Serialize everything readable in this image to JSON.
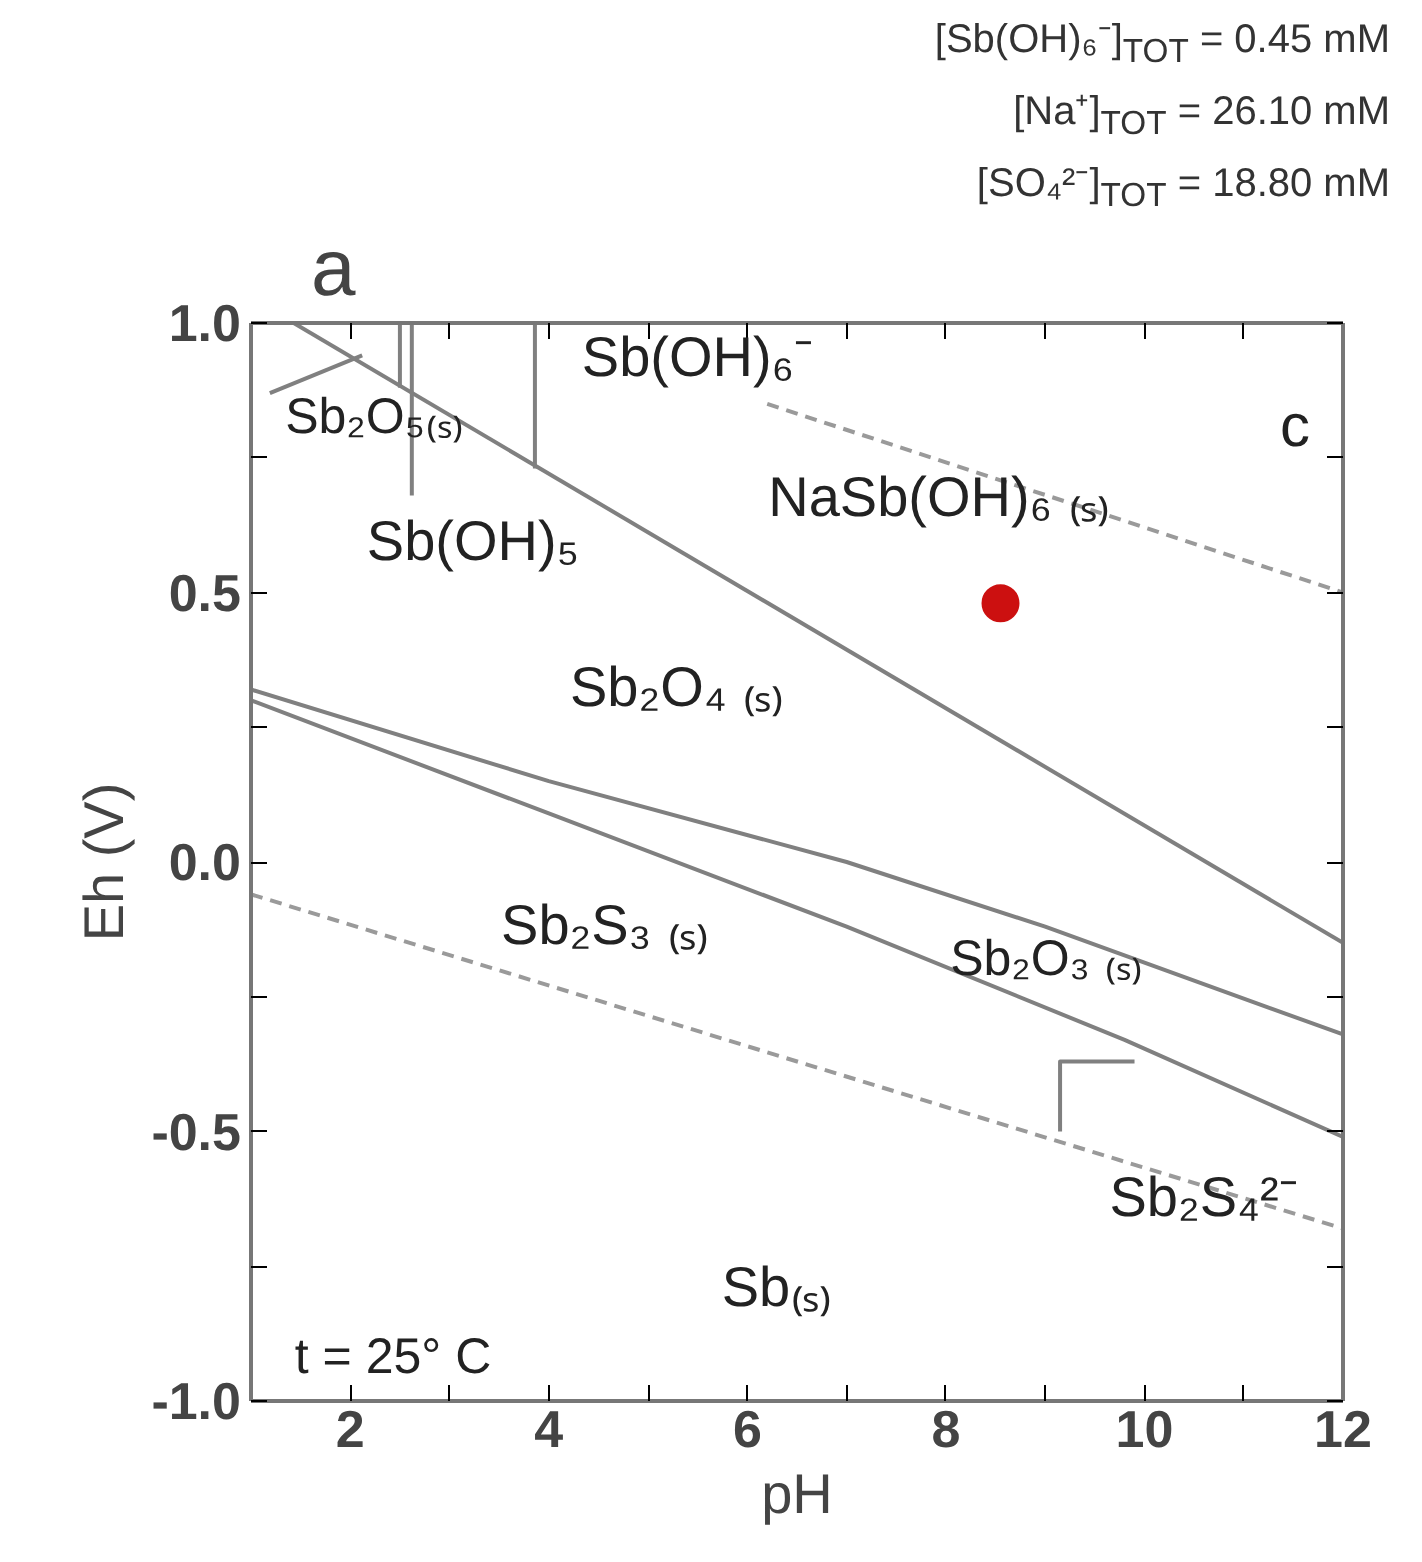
{
  "chart_data": {
    "type": "line",
    "title": "a",
    "xlabel": "pH",
    "ylabel": "Eh (V)",
    "subtitle": [
      "[Sb(OH)₆⁻]$_{TOT}$ = 0.45 mM",
      "[Na⁺]$_{TOT}$ = 26.10 mM",
      "[SO₄²⁻]$_{TOT}$ = 18.80 mM"
    ],
    "xlim": [
      1,
      12
    ],
    "ylim": [
      -1,
      1
    ],
    "xticks": [
      2,
      {
        "value": 3,
        "label": null
      },
      4,
      {
        "value": 5,
        "label": null
      },
      6,
      {
        "value": 7,
        "label": null
      },
      8,
      {
        "value": 9,
        "label": null
      },
      10,
      {
        "value": 11,
        "label": null
      },
      12
    ],
    "yticks": [
      {
        "value": -1,
        "label": "-1.0"
      },
      {
        "value": -0.75,
        "label": null
      },
      {
        "value": -0.5,
        "label": "-0.5"
      },
      {
        "value": -0.25,
        "label": null
      },
      {
        "value": 0,
        "label": "0.0"
      },
      {
        "value": 0.25,
        "label": null
      },
      {
        "value": 0.5,
        "label": "0.5"
      },
      {
        "value": 0.75,
        "label": null
      },
      {
        "value": 1,
        "label": "1.0"
      }
    ],
    "grid": false,
    "marker": "none",
    "series": [
      {
        "color": "#808080",
        "x": [
          1.43,
          12
        ],
        "values": [
          1.0,
          -0.15
        ]
      },
      {
        "color": "#808080",
        "x": [
          1,
          4,
          7,
          9,
          12
        ],
        "values": [
          0.32,
          0.15,
          0.0,
          -0.12,
          -0.32
        ]
      },
      {
        "color": "#808080",
        "x": [
          1,
          4,
          7,
          9.8,
          12
        ],
        "values": [
          0.3,
          0.09,
          -0.12,
          -0.33,
          -0.51
        ]
      },
      {
        "color": "#808080",
        "x": [
          9.15,
          9.15,
          9.9
        ],
        "values": [
          -0.5,
          -0.37,
          -0.37
        ]
      },
      {
        "color": "#9a9a9a",
        "line_style": "dashed",
        "x": [
          1,
          12
        ],
        "values": [
          -0.06,
          -0.68
        ]
      },
      {
        "color": "#9a9a9a",
        "line_style": "dashed",
        "x": [
          6.2,
          12
        ],
        "values": [
          0.85,
          0.5
        ]
      },
      {
        "color": "#808080",
        "x": [
          1.19,
          2.12
        ],
        "values": [
          0.87,
          0.94
        ]
      },
      {
        "color": "#808080",
        "x": [
          2.5,
          2.5
        ],
        "values": [
          1.0,
          0.88
        ]
      },
      {
        "color": "#808080",
        "x": [
          2.62,
          2.62
        ],
        "values": [
          1.0,
          0.68
        ]
      },
      {
        "color": "#808080",
        "x": [
          3.86,
          3.86
        ],
        "values": [
          1.0,
          0.73
        ]
      },
      {
        "type": "scatter",
        "marker": "circle",
        "color": "#cc1010",
        "x": [
          8.55
        ],
        "values": [
          0.48
        ]
      }
    ],
    "annotations": [
      "Sb₂O₅₍ₛ₎",
      "Sb(OH)₆⁻",
      "Sb(OH)₅",
      "NaSb(OH)₆ ₍ₛ₎",
      "Sb₂O₄ ₍ₛ₎",
      "Sb₂S₃ ₍ₛ₎",
      "Sb₂O₃ ₍ₛ₎",
      "Sb₂S₄²⁻",
      "Sb₍ₛ₎",
      "c",
      "t = 25° C"
    ]
  }
}
